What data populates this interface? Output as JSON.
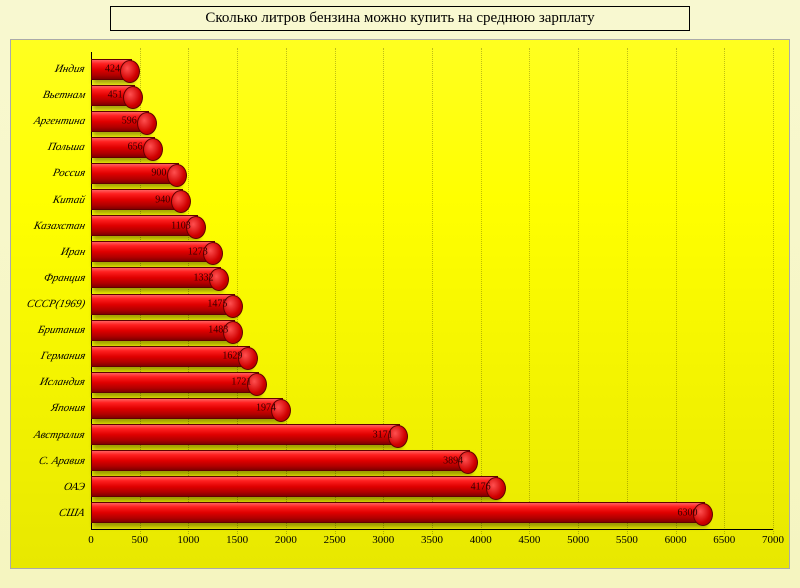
{
  "chart": {
    "type": "bar-horizontal-3d",
    "title": "Сколько литров бензина можно купить на среднюю зарплату",
    "title_fontsize": 15,
    "background_outer": "#f7f7c8",
    "background_inner_gradient": [
      "#ffff20",
      "#ffff00",
      "#e8e800"
    ],
    "bar_color_gradient": [
      "#ff6060",
      "#e00000",
      "#800000"
    ],
    "bar_border_color": "#600000",
    "grid_color": "rgba(0,0,0,0.25)",
    "label_fontsize": 11,
    "xlim": [
      0,
      7000
    ],
    "xtick_step": 500,
    "xticks": [
      0,
      500,
      1000,
      1500,
      2000,
      2500,
      3000,
      3500,
      4000,
      4500,
      5000,
      5500,
      6000,
      6500,
      7000
    ],
    "categories": [
      "Индия",
      "Вьетнам",
      "Аргентина",
      "Польша",
      "Россия",
      "Китай",
      "Казахстан",
      "Иран",
      "Франция",
      "СССР(1969)",
      "Британия",
      "Германия",
      "Исландия",
      "Япония",
      "Австралия",
      "С. Аравия",
      "ОАЭ",
      "США"
    ],
    "values": [
      424,
      451,
      596,
      656,
      900,
      940,
      1103,
      1273,
      1332,
      1475,
      1483,
      1629,
      1721,
      1974,
      3171,
      3894,
      4176,
      6300
    ]
  }
}
